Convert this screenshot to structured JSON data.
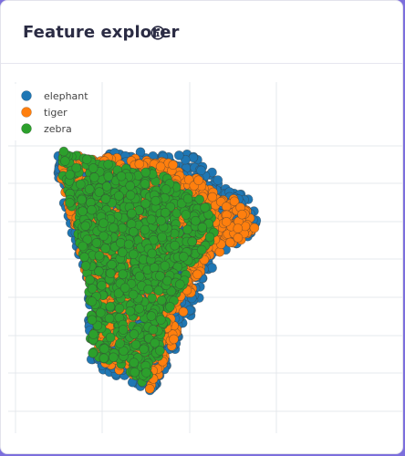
{
  "header": {
    "title": "Feature explorer",
    "info_icon": "info-circle-icon"
  },
  "chart_data": {
    "type": "scatter",
    "title": "",
    "xlabel": "",
    "ylabel": "",
    "grid": true,
    "legend_placement": "top-left",
    "x_ticks_shown": false,
    "y_ticks_shown": false,
    "series": [
      {
        "name": "elephant",
        "color": "#1f77b4",
        "approx_point_count": 1200,
        "cluster_outline": [
          [
            -4.6,
            4.4
          ],
          [
            -3.3,
            4.1
          ],
          [
            -2.0,
            4.5
          ],
          [
            0.2,
            4.5
          ],
          [
            1.6,
            4.3
          ],
          [
            2.6,
            3.3
          ],
          [
            3.8,
            2.8
          ],
          [
            4.2,
            2.0
          ],
          [
            3.9,
            1.6
          ],
          [
            3.2,
            1.1
          ],
          [
            2.2,
            0.4
          ],
          [
            1.3,
            -1.2
          ],
          [
            0.7,
            -2.2
          ],
          [
            0.1,
            -3.4
          ],
          [
            -0.6,
            -4.0
          ],
          [
            -1.6,
            -3.6
          ],
          [
            -2.4,
            -3.4
          ],
          [
            -3.2,
            -2.9
          ],
          [
            -3.3,
            -1.2
          ],
          [
            -3.7,
            0.6
          ],
          [
            -4.2,
            2.2
          ],
          [
            -4.7,
            3.5
          ]
        ]
      },
      {
        "name": "tiger",
        "color": "#ff7f0e",
        "approx_point_count": 1200,
        "cluster_outline": [
          [
            -4.4,
            4.5
          ],
          [
            -3.2,
            4.2
          ],
          [
            -2.0,
            4.3
          ],
          [
            0.2,
            4.1
          ],
          [
            1.3,
            3.8
          ],
          [
            2.5,
            2.8
          ],
          [
            3.4,
            2.8
          ],
          [
            4.2,
            2.0
          ],
          [
            3.9,
            1.6
          ],
          [
            2.9,
            1.1
          ],
          [
            1.8,
            0.6
          ],
          [
            1.1,
            -0.9
          ],
          [
            0.5,
            -2.2
          ],
          [
            -0.1,
            -3.3
          ],
          [
            -0.6,
            -4.0
          ],
          [
            -1.6,
            -3.6
          ],
          [
            -2.2,
            -3.3
          ],
          [
            -3.0,
            -2.8
          ],
          [
            -3.1,
            -1.0
          ],
          [
            -3.6,
            0.8
          ],
          [
            -4.1,
            2.4
          ],
          [
            -4.5,
            3.6
          ]
        ]
      },
      {
        "name": "zebra",
        "color": "#2ca02c",
        "approx_point_count": 1000,
        "cluster_outline": [
          [
            -4.4,
            4.5
          ],
          [
            -3.0,
            4.2
          ],
          [
            -1.8,
            3.9
          ],
          [
            -0.2,
            3.8
          ],
          [
            1.0,
            3.1
          ],
          [
            2.3,
            2.4
          ],
          [
            2.2,
            1.4
          ],
          [
            1.3,
            0.6
          ],
          [
            0.8,
            -0.4
          ],
          [
            0.1,
            -1.6
          ],
          [
            -0.2,
            -3.0
          ],
          [
            -0.9,
            -3.7
          ],
          [
            -1.6,
            -3.2
          ],
          [
            -2.4,
            -2.9
          ],
          [
            -3.2,
            -2.8
          ],
          [
            -3.2,
            -1.2
          ],
          [
            -3.5,
            0.4
          ],
          [
            -4.0,
            2.2
          ],
          [
            -4.5,
            3.6
          ]
        ]
      }
    ]
  }
}
